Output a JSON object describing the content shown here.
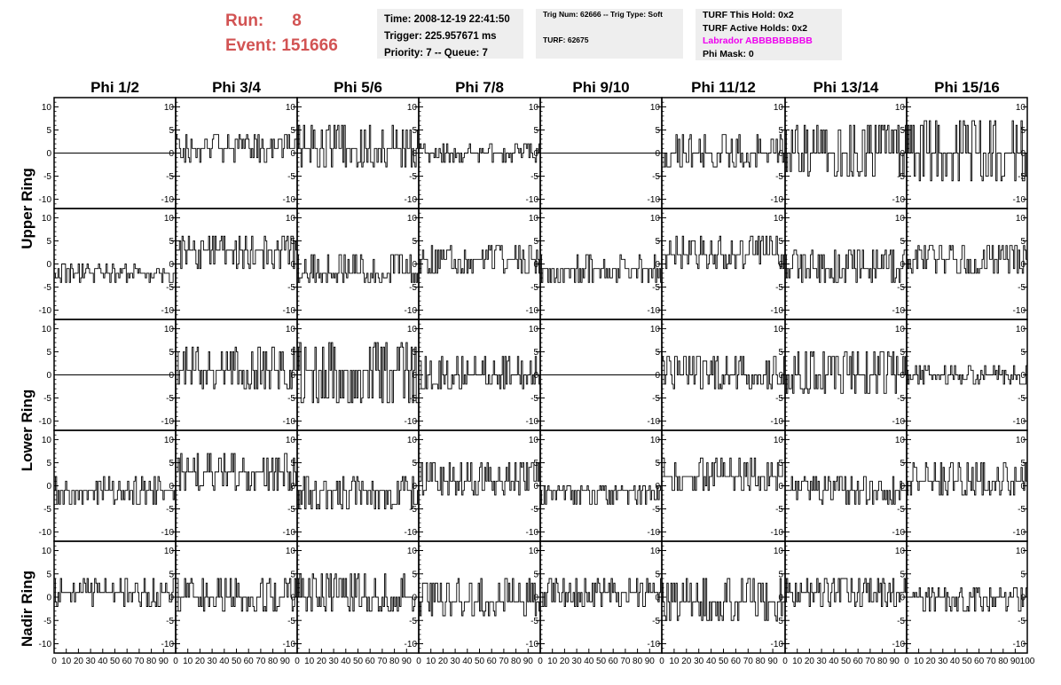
{
  "header": {
    "run_label": "Run:",
    "run_value": "8",
    "event_label": "Event:",
    "event_value": "151666",
    "time": "Time: 2008-12-19 22:41:50",
    "trigger": "Trigger: 225.957671 ms",
    "priority": "Priority: 7 -- Queue: 7",
    "trig_num": "Trig Num: 62666 -- Trig Type: Soft",
    "turf": "TURF: 62675",
    "turf_this_hold": "TURF This Hold: 0x2",
    "turf_active_holds": "TURF Active Holds: 0x2",
    "labrador": "Labrador ABBBBBBBBB",
    "phi_mask": "Phi Mask: 0"
  },
  "chart_data": {
    "type": "line",
    "columns": [
      "Phi 1/2",
      "Phi 3/4",
      "Phi 5/6",
      "Phi 7/8",
      "Phi 9/10",
      "Phi 11/12",
      "Phi 13/14",
      "Phi 15/16"
    ],
    "rows": [
      "Upper Ring",
      "Upper Ring",
      "Lower Ring",
      "Lower Ring",
      "Nadir Ring"
    ],
    "row_labels": [
      {
        "text": "Upper Ring"
      },
      {
        "text": "Lower Ring"
      },
      {
        "text": "Nadir Ring"
      }
    ],
    "xlim": [
      0,
      100
    ],
    "ylim": [
      -12,
      12
    ],
    "yticks": [
      -10,
      -5,
      0,
      5,
      10
    ],
    "xticks": [
      0,
      10,
      20,
      30,
      40,
      50,
      60,
      70,
      80,
      90,
      100
    ],
    "samples": 96,
    "panels": [
      [
        {
          "flat": true
        },
        {
          "base": 1,
          "hi": 4,
          "lo": -2
        },
        {
          "base": 1,
          "hi": 6,
          "lo": -3
        },
        {
          "base": 0,
          "hi": 2,
          "lo": -2
        },
        {
          "flat": true
        },
        {
          "base": 0,
          "hi": 4,
          "lo": -3
        },
        {
          "base": 0,
          "hi": 6,
          "lo": -5
        },
        {
          "base": 0,
          "hi": 7,
          "lo": -6
        }
      ],
      [
        {
          "base": -2,
          "hi": 0,
          "lo": -4
        },
        {
          "base": 3,
          "hi": 6,
          "lo": -1
        },
        {
          "base": -2,
          "hi": 2,
          "lo": -4
        },
        {
          "base": 1,
          "hi": 4,
          "lo": -2
        },
        {
          "base": -1,
          "hi": 2,
          "lo": -4
        },
        {
          "base": 2,
          "hi": 6,
          "lo": -1
        },
        {
          "base": -1,
          "hi": 3,
          "lo": -4
        },
        {
          "base": 1,
          "hi": 4,
          "lo": -2
        }
      ],
      [
        {
          "flat": true
        },
        {
          "base": 1,
          "hi": 6,
          "lo": -3
        },
        {
          "base": 1,
          "hi": 7,
          "lo": -6
        },
        {
          "base": 0,
          "hi": 4,
          "lo": -3
        },
        {
          "flat": true
        },
        {
          "base": 0,
          "hi": 4,
          "lo": -3
        },
        {
          "base": 0,
          "hi": 5,
          "lo": -4
        },
        {
          "base": 0,
          "hi": 2,
          "lo": -2
        }
      ],
      [
        {
          "base": -1,
          "hi": 2,
          "lo": -4
        },
        {
          "base": 3,
          "hi": 7,
          "lo": -1
        },
        {
          "base": -1,
          "hi": 2,
          "lo": -5
        },
        {
          "base": 1,
          "hi": 5,
          "lo": -2
        },
        {
          "base": -1,
          "hi": 0,
          "lo": -4
        },
        {
          "base": 2,
          "hi": 6,
          "lo": -1
        },
        {
          "base": -1,
          "hi": 2,
          "lo": -4
        },
        {
          "base": 1,
          "hi": 5,
          "lo": -2
        }
      ],
      [
        {
          "base": 1,
          "hi": 4,
          "lo": -2
        },
        {
          "base": 0,
          "hi": 4,
          "lo": -3
        },
        {
          "base": 0,
          "hi": 5,
          "lo": -3
        },
        {
          "base": -1,
          "hi": 4,
          "lo": -4
        },
        {
          "base": 1,
          "hi": 4,
          "lo": -2
        },
        {
          "base": -1,
          "hi": 4,
          "lo": -5
        },
        {
          "base": 1,
          "hi": 4,
          "lo": -2
        },
        {
          "base": 0,
          "hi": 2,
          "lo": -3
        }
      ]
    ]
  }
}
